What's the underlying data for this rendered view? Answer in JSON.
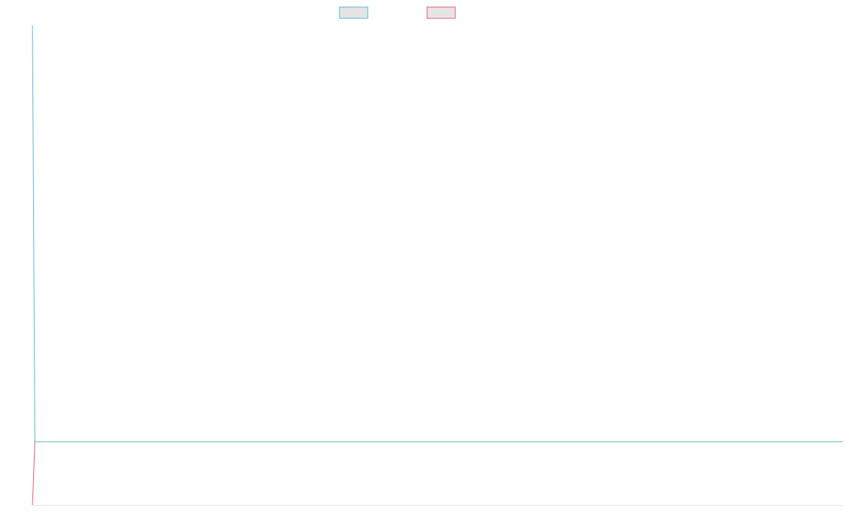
{
  "chart_data": {
    "type": "line",
    "title": "",
    "xlabel": "",
    "ylabel": "",
    "grid": false,
    "legend": "top-center",
    "xlim": [
      0,
      100
    ],
    "ylim": [
      0,
      100
    ],
    "series": [
      {
        "color": "#4bb8c9",
        "fill": "#e5e5e5",
        "x": [
          0,
          0.3,
          100
        ],
        "y": [
          100,
          13.2,
          13.2
        ]
      },
      {
        "color": "#e8526f",
        "fill": "#e5e5e5",
        "x": [
          0,
          0.3
        ],
        "y": [
          0,
          13.2
        ]
      }
    ]
  }
}
